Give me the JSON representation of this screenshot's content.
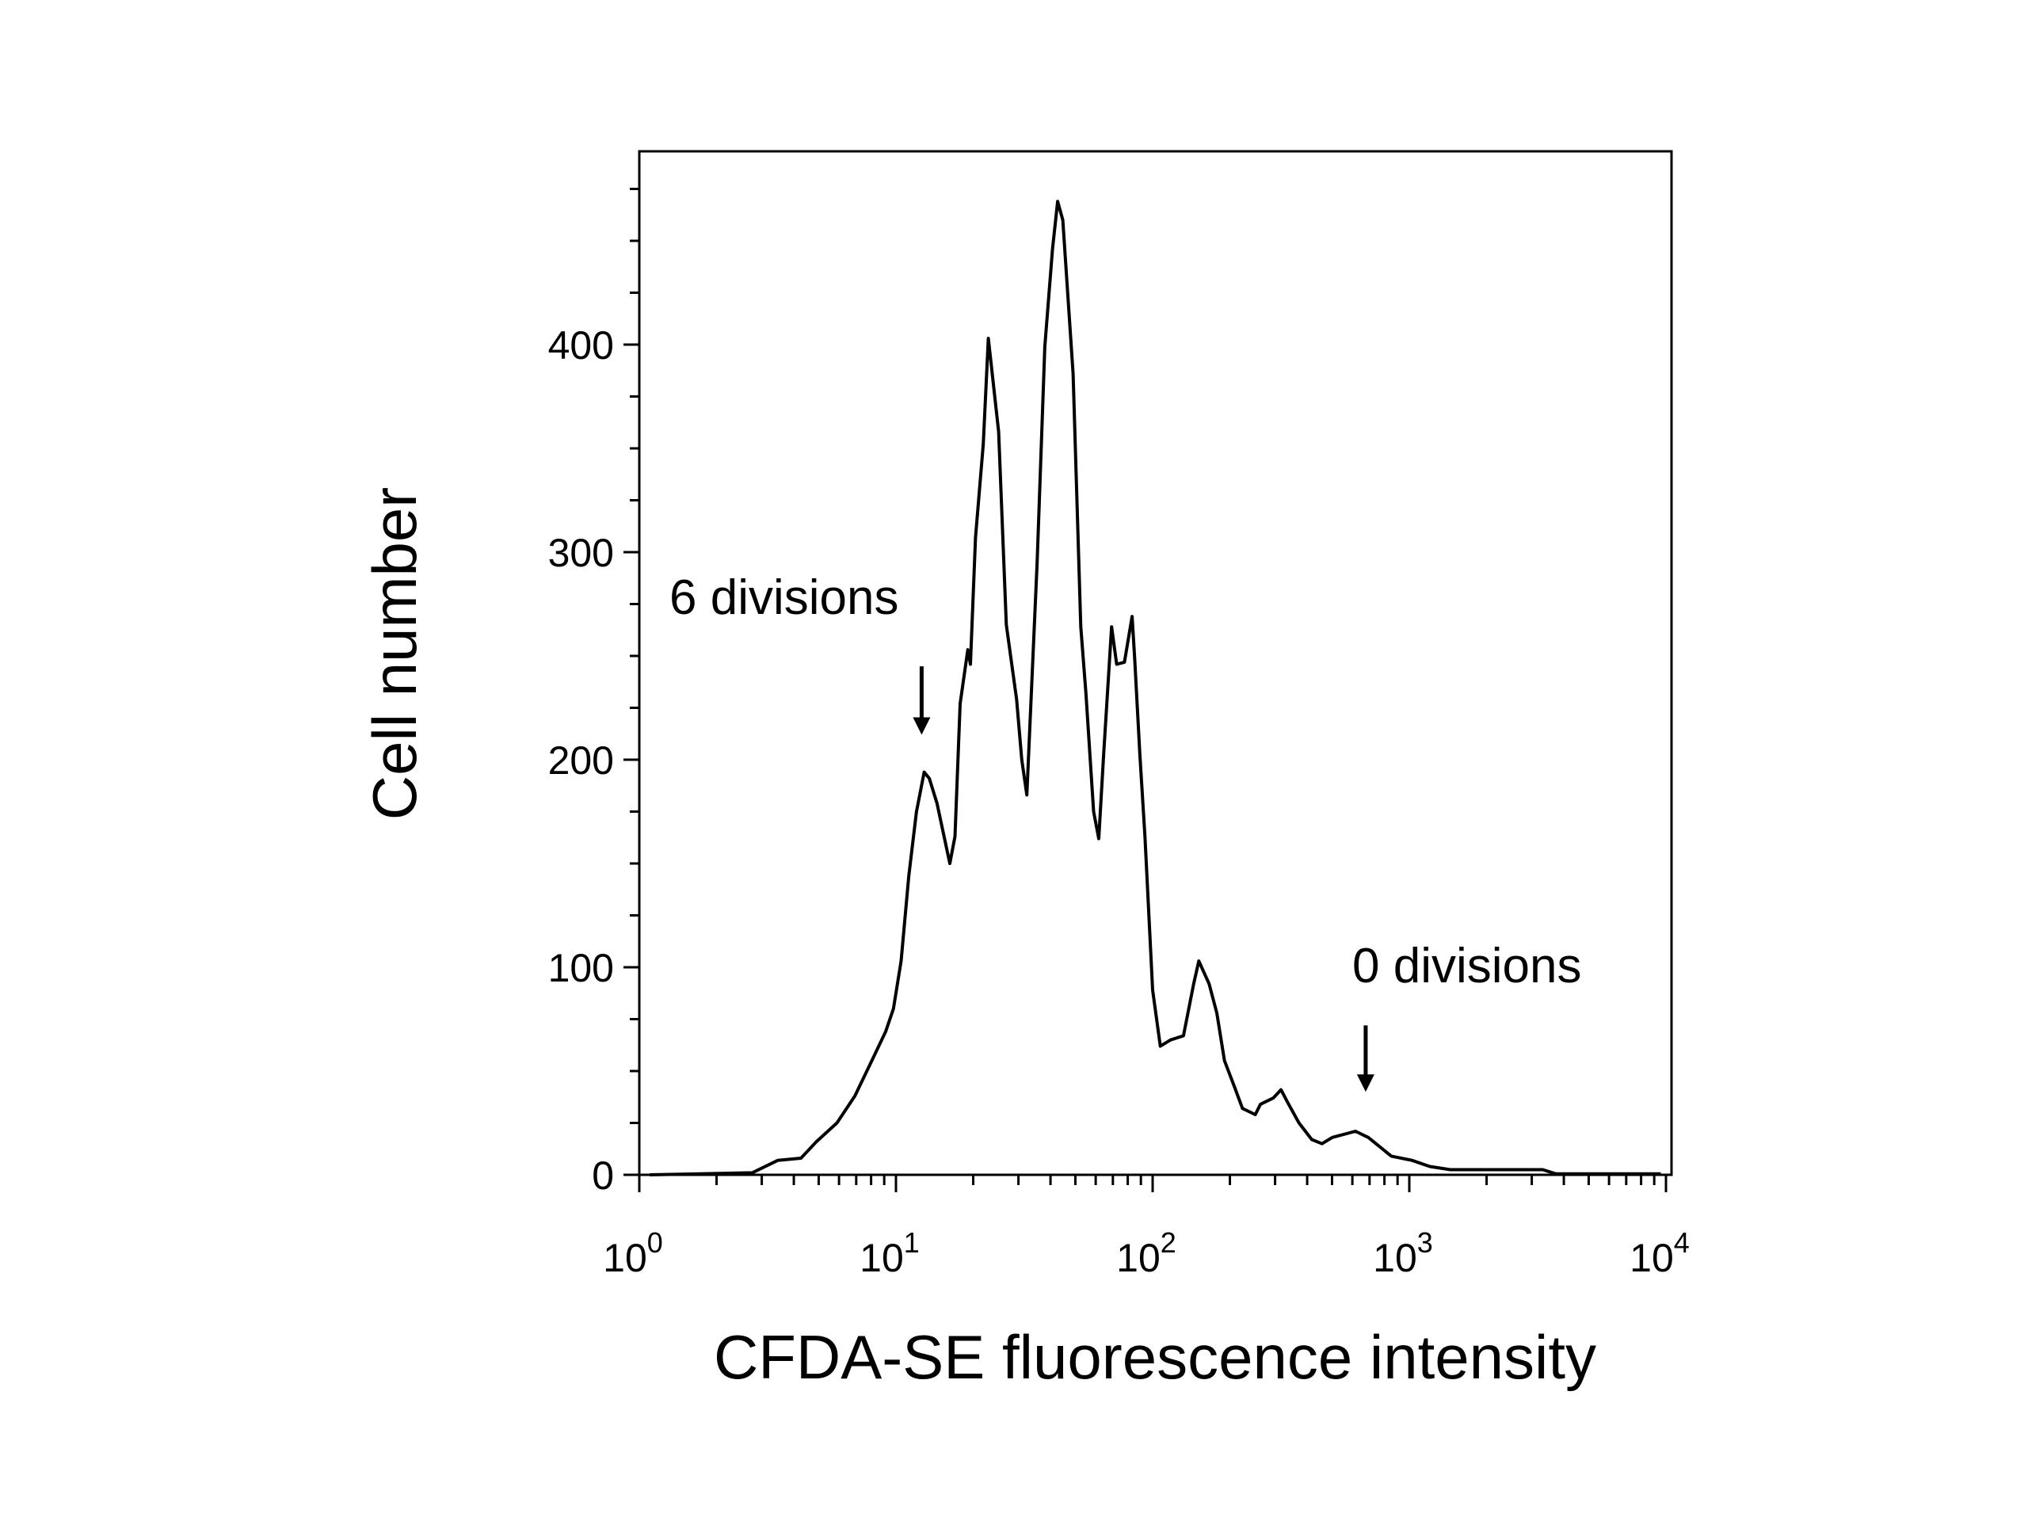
{
  "chart_data": {
    "type": "line",
    "title": "",
    "xlabel": "CFDA-SE fluorescence intensity",
    "ylabel": "Cell number",
    "xscale": "log",
    "xlim": [
      1,
      10000
    ],
    "ylim": [
      0,
      490
    ],
    "x_ticks": [
      {
        "base": "10",
        "exp": "0"
      },
      {
        "base": "10",
        "exp": "1"
      },
      {
        "base": "10",
        "exp": "2"
      },
      {
        "base": "10",
        "exp": "3"
      },
      {
        "base": "10",
        "exp": "4"
      }
    ],
    "y_ticks": [
      "0",
      "100",
      "200",
      "300",
      "400"
    ],
    "y_tick_values": [
      0,
      100,
      200,
      300,
      400
    ],
    "grid": false,
    "series": [
      {
        "name": "histogram",
        "color": "#000000",
        "log10_x": [
          0.04,
          0.44,
          0.54,
          0.63,
          0.69,
          0.77,
          0.84,
          0.91,
          0.96,
          0.99,
          1.02,
          1.05,
          1.08,
          1.11,
          1.13,
          1.16,
          1.21,
          1.23,
          1.25,
          1.28,
          1.29,
          1.31,
          1.34,
          1.36,
          1.4,
          1.43,
          1.47,
          1.49,
          1.51,
          1.55,
          1.58,
          1.61,
          1.63,
          1.65,
          1.69,
          1.72,
          1.74,
          1.77,
          1.79,
          1.81,
          1.84,
          1.86,
          1.89,
          1.92,
          1.93,
          1.95,
          1.97,
          2.0,
          2.03,
          2.07,
          2.12,
          2.16,
          2.18,
          2.22,
          2.25,
          2.28,
          2.32,
          2.35,
          2.4,
          2.42,
          2.47,
          2.5,
          2.53,
          2.57,
          2.62,
          2.66,
          2.7,
          2.79,
          2.84,
          2.89,
          2.93,
          3.01,
          3.08,
          3.16,
          3.52,
          3.57,
          3.98
        ],
        "values": [
          0,
          1,
          7,
          8,
          16,
          25,
          38,
          56,
          69,
          80,
          103,
          144,
          175,
          194,
          191,
          179,
          150,
          163,
          227,
          253,
          246,
          307,
          352,
          403,
          358,
          265,
          229,
          200,
          183,
          295,
          399,
          446,
          469,
          460,
          386,
          264,
          232,
          175,
          162,
          204,
          264,
          246,
          247,
          269,
          249,
          203,
          163,
          89,
          62,
          65,
          67,
          92,
          103,
          92,
          78,
          55,
          42,
          32,
          29,
          34,
          37,
          41,
          34,
          25,
          17,
          15,
          18,
          21,
          18,
          13,
          9,
          7,
          4,
          2.5,
          2.5,
          0.5,
          0.5
        ]
      }
    ],
    "annotations": [
      {
        "text": "6 divisions",
        "arrow_log10_x": 1.1,
        "arrow_top": 245,
        "arrow_tip": 212
      },
      {
        "text": "0 divisions",
        "arrow_log10_x": 2.83,
        "arrow_top": 72,
        "arrow_tip": 40
      }
    ]
  }
}
